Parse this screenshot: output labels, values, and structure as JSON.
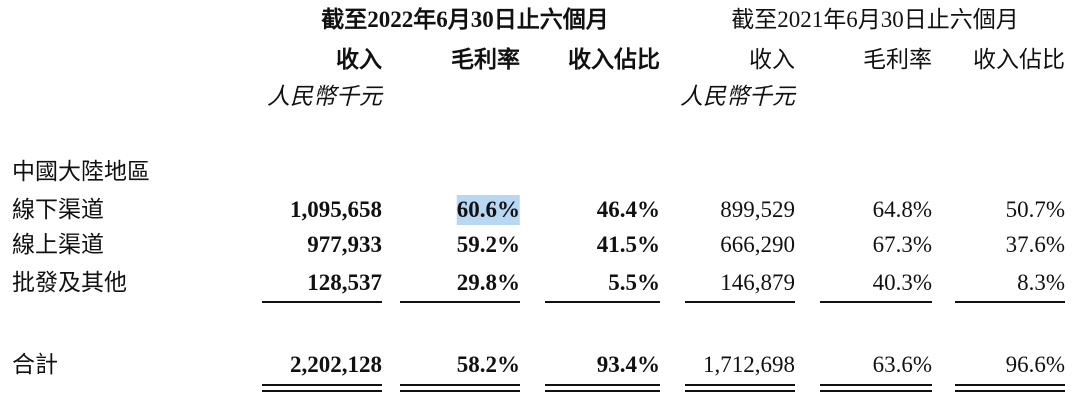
{
  "header": {
    "period_2022": "截至2022年6月30日止六個月",
    "period_2021": "截至2021年6月30日止六個月",
    "columns": [
      "收入",
      "毛利率",
      "收入佔比",
      "收入",
      "毛利率",
      "收入佔比"
    ],
    "unit_2022": "人民幣千元",
    "unit_2021": "人民幣千元"
  },
  "table": {
    "section": "中國大陸地區",
    "rows": [
      [
        "線下渠道",
        "1,095,658",
        "60.6%",
        "46.4%",
        "899,529",
        "64.8%",
        "50.7%"
      ],
      [
        "線上渠道",
        "977,933",
        "59.2%",
        "41.5%",
        "666,290",
        "67.3%",
        "37.6%"
      ],
      [
        "批發及其他",
        "128,537",
        "29.8%",
        "5.5%",
        "146,879",
        "40.3%",
        "8.3%"
      ]
    ],
    "total": [
      "合計",
      "2,202,128",
      "58.2%",
      "93.4%",
      "1,712,698",
      "63.6%",
      "96.6%"
    ]
  }
}
